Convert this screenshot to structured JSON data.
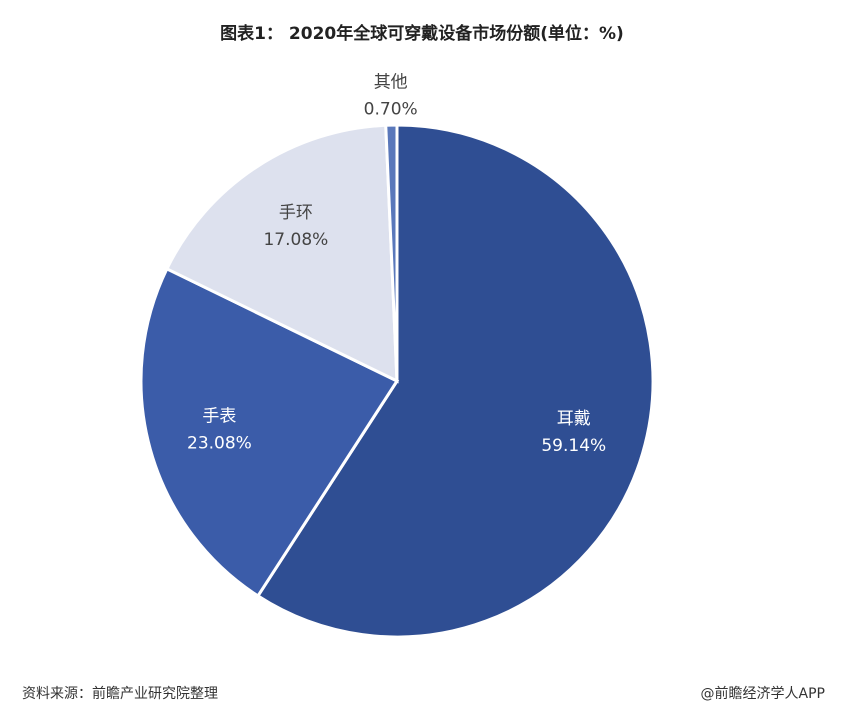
{
  "chart_data": {
    "type": "pie",
    "title": "图表1： 2020年全球可穿戴设备市场份额(单位：%)",
    "categories": [
      "耳戴",
      "手表",
      "手环",
      "其他"
    ],
    "values": [
      59.14,
      23.08,
      17.08,
      0.7
    ],
    "value_labels": [
      "59.14%",
      "23.08%",
      "17.08%",
      "0.70%"
    ],
    "colors": [
      "#2f4e93",
      "#3b5ca9",
      "#dde1ee",
      "#5a78bb"
    ],
    "source": "资料来源：前瞻产业研究院整理",
    "credit": "@前瞻经济学人APP"
  }
}
